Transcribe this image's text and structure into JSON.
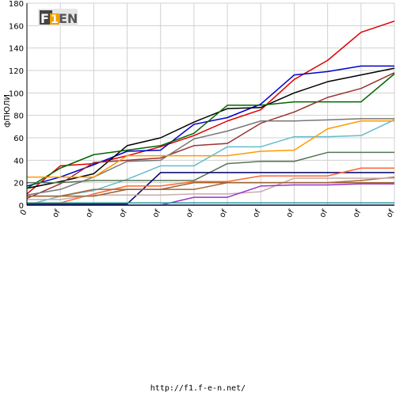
{
  "chart_data": {
    "type": "line",
    "title": "",
    "xlabel": "",
    "ylabel": "фПЮЛИ",
    "ylim": [
      0,
      180
    ],
    "yticks": [
      0,
      20,
      40,
      60,
      80,
      100,
      120,
      140,
      160,
      180
    ],
    "x": [
      "0",
      "of",
      "of",
      "of",
      "of",
      "of",
      "of",
      "of",
      "of",
      "of",
      "of",
      "of"
    ],
    "grid": true,
    "legend": "none",
    "series": [
      {
        "color": "#dd0000",
        "values": [
          10,
          35,
          37,
          44,
          52,
          62,
          75,
          85,
          112,
          129,
          154,
          164
        ]
      },
      {
        "color": "#0000cc",
        "values": [
          17,
          25,
          36,
          48,
          49,
          72,
          78,
          90,
          116,
          119,
          124,
          124
        ]
      },
      {
        "color": "#000000",
        "values": [
          15,
          21,
          28,
          53,
          60,
          74,
          86,
          87,
          100,
          110,
          116,
          122
        ]
      },
      {
        "color": "#006600",
        "values": [
          15,
          33,
          45,
          49,
          53,
          64,
          89,
          89,
          92,
          92,
          92,
          117
        ]
      },
      {
        "color": "#993333",
        "values": [
          6,
          19,
          38,
          40,
          42,
          53,
          55,
          73,
          83,
          96,
          104,
          118
        ]
      },
      {
        "color": "#777777",
        "values": [
          9,
          14,
          25,
          39,
          40,
          59,
          66,
          75,
          75,
          76,
          77,
          77
        ]
      },
      {
        "color": "#66bbcc",
        "values": [
          0,
          8,
          13,
          23,
          35,
          35,
          52,
          52,
          61,
          61,
          62,
          76
        ]
      },
      {
        "color": "#ff9900",
        "values": [
          25,
          25,
          25,
          44,
          44,
          44,
          44,
          48,
          49,
          68,
          75,
          75
        ]
      },
      {
        "color": "#557755",
        "values": [
          20,
          20,
          22,
          22,
          22,
          22,
          37,
          39,
          39,
          47,
          47,
          47
        ]
      },
      {
        "color": "#000066",
        "values": [
          1,
          1,
          1,
          1,
          29,
          29,
          29,
          29,
          29,
          29,
          29,
          29
        ]
      },
      {
        "color": "#ff6633",
        "values": [
          2,
          2,
          10,
          17,
          17,
          21,
          21,
          26,
          26,
          26,
          33,
          33
        ]
      },
      {
        "color": "#aa6633",
        "values": [
          8,
          8,
          14,
          14,
          14,
          14,
          20,
          20,
          20,
          20,
          22,
          25
        ]
      },
      {
        "color": "#ccaaaa",
        "values": [
          5,
          5,
          9,
          9,
          9,
          10,
          10,
          12,
          24,
          24,
          24,
          24
        ]
      },
      {
        "color": "#996633",
        "values": [
          8,
          8,
          8,
          14,
          14,
          20,
          20,
          20,
          20,
          20,
          20,
          20
        ]
      },
      {
        "color": "#9933cc",
        "values": [
          0,
          0,
          0,
          0,
          0,
          7,
          7,
          17,
          18,
          18,
          19,
          19
        ]
      },
      {
        "color": "#33ccff",
        "values": [
          0,
          0,
          0,
          0,
          0,
          0,
          0,
          0,
          0,
          0,
          0,
          0
        ]
      },
      {
        "color": "#339999",
        "values": [
          2,
          2,
          2,
          2,
          2,
          2,
          2,
          2,
          2,
          2,
          2,
          2
        ]
      },
      {
        "color": "#3366cc",
        "values": [
          0,
          0,
          0,
          0,
          0,
          0,
          0,
          0,
          0,
          0,
          0,
          0
        ]
      }
    ]
  },
  "logo_text": "F1EN",
  "footer": {
    "url": "http://f1.f-e-n.net/"
  }
}
